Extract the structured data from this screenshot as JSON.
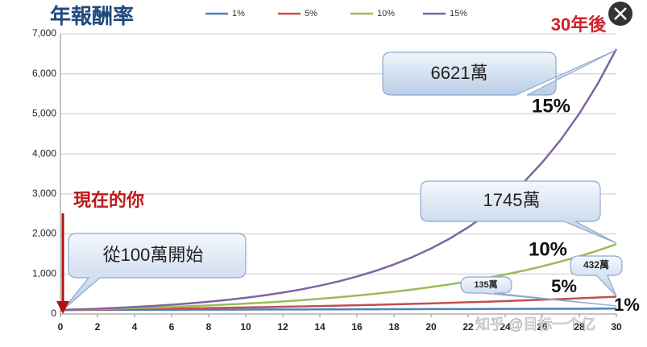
{
  "chart_data": {
    "type": "line",
    "title": "年報酬率",
    "x": [
      0,
      1,
      2,
      3,
      4,
      5,
      6,
      7,
      8,
      9,
      10,
      11,
      12,
      13,
      14,
      15,
      16,
      17,
      18,
      19,
      20,
      21,
      22,
      23,
      24,
      25,
      26,
      27,
      28,
      29,
      30
    ],
    "xlim": [
      0,
      30
    ],
    "xticks": [
      0,
      2,
      4,
      6,
      8,
      10,
      12,
      14,
      16,
      18,
      20,
      22,
      24,
      26,
      28,
      30
    ],
    "ylim": [
      0,
      7000
    ],
    "yticks": [
      0,
      {
        "value": 1000,
        "label": "1,000"
      },
      {
        "value": 2000,
        "label": "2,000"
      },
      {
        "value": 3000,
        "label": "3,000"
      },
      {
        "value": 4000,
        "label": "4,000"
      },
      {
        "value": 5000,
        "label": "5,000"
      },
      {
        "value": 6000,
        "label": "6,000"
      },
      {
        "value": 7000,
        "label": "7,000"
      }
    ],
    "grid": true,
    "series": [
      {
        "name": "1%",
        "color": "#4f81bd",
        "values": [
          100,
          101,
          102,
          103,
          104,
          105,
          106,
          107,
          108,
          109,
          110,
          112,
          113,
          114,
          115,
          116,
          117,
          118,
          120,
          121,
          122,
          123,
          124,
          126,
          127,
          128,
          130,
          131,
          132,
          133,
          135
        ]
      },
      {
        "name": "5%",
        "color": "#c0504d",
        "values": [
          100,
          105,
          110,
          116,
          122,
          128,
          134,
          141,
          148,
          155,
          163,
          171,
          180,
          189,
          198,
          208,
          218,
          229,
          241,
          253,
          265,
          279,
          293,
          307,
          323,
          339,
          356,
          373,
          392,
          412,
          432
        ]
      },
      {
        "name": "10%",
        "color": "#9bbb59",
        "values": [
          100,
          110,
          121,
          133,
          146,
          161,
          177,
          195,
          214,
          236,
          259,
          285,
          314,
          345,
          380,
          418,
          459,
          505,
          556,
          612,
          673,
          740,
          814,
          895,
          985,
          1083,
          1192,
          1311,
          1442,
          1586,
          1745
        ]
      },
      {
        "name": "15%",
        "color": "#8064a2",
        "values": [
          100,
          115,
          132,
          152,
          175,
          201,
          231,
          266,
          306,
          352,
          405,
          465,
          535,
          615,
          708,
          814,
          936,
          1076,
          1238,
          1423,
          1637,
          1882,
          2165,
          2489,
          2863,
          3292,
          3786,
          4354,
          5007,
          5758,
          6621
        ]
      }
    ],
    "annotations": [
      {
        "text": "30年後"
      },
      {
        "text": "6621萬"
      },
      {
        "text": "15%"
      },
      {
        "text": "1745萬"
      },
      {
        "text": "10%"
      },
      {
        "text": "432萬"
      },
      {
        "text": "5%"
      },
      {
        "text": "135萬"
      },
      {
        "text": "1%"
      },
      {
        "text": "現在的你"
      },
      {
        "text": "從100萬開始"
      }
    ],
    "watermark": "知乎 @目标一个亿"
  }
}
